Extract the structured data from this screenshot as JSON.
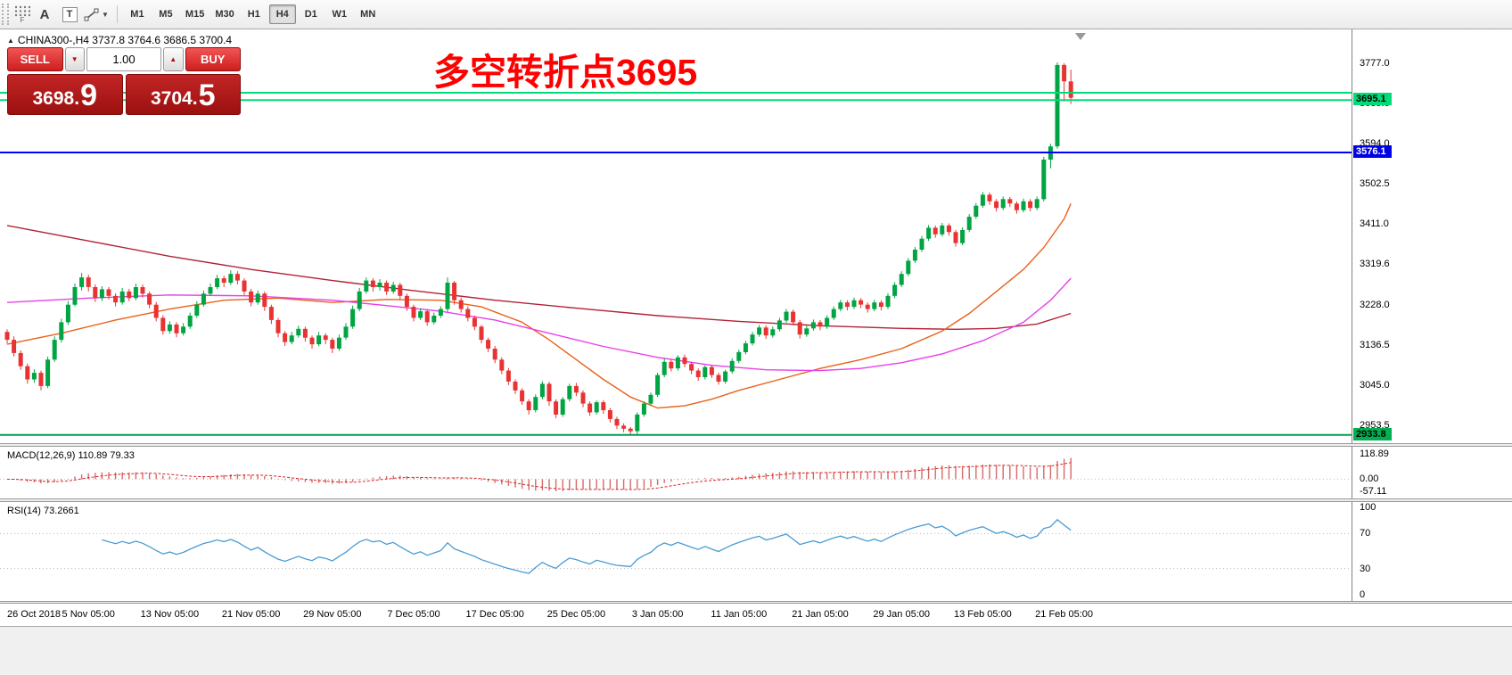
{
  "toolbar": {
    "grip_label": "F",
    "text_tool_a": "A",
    "text_tool_t": "T",
    "timeframes": [
      "M1",
      "M5",
      "M15",
      "M30",
      "H1",
      "H4",
      "D1",
      "W1",
      "MN"
    ],
    "active_timeframe": "H4"
  },
  "chart": {
    "symbol_line": "CHINA300-,H4  3737.8 3764.6 3686.5 3700.4",
    "annotation": "多空转折点3695",
    "annotation_color": "#FF0000",
    "axis_labels": [
      "3777.0",
      "3685.6",
      "3594.0",
      "3502.5",
      "3411.0",
      "3319.6",
      "3228.0",
      "3136.5",
      "3045.0",
      "2953.5"
    ]
  },
  "trade_panel": {
    "sell_label": "SELL",
    "buy_label": "BUY",
    "volume": "1.00",
    "sell_price_main": "3698.",
    "sell_price_pip": "9",
    "buy_price_main": "3704.",
    "buy_price_pip": "5"
  },
  "macd": {
    "label": "MACD(12,26,9) 110.89 79.33",
    "axis": [
      "118.89",
      "0.00",
      "-57.11"
    ],
    "range": [
      -57.11,
      118.89
    ],
    "hist_color": "#d46a6a",
    "signal_color": "#dd2222"
  },
  "rsi": {
    "label": "RSI(14) 73.2661",
    "axis": [
      "100",
      "70",
      "30",
      "0"
    ],
    "levels": [
      70,
      30
    ],
    "line_color": "#4a9bd4"
  },
  "timeline": [
    {
      "bar": 0,
      "label": "26 Oct 2018"
    },
    {
      "bar": 12,
      "label": "5 Nov 05:00"
    },
    {
      "bar": 24,
      "label": "13 Nov 05:00"
    },
    {
      "bar": 36,
      "label": "21 Nov 05:00"
    },
    {
      "bar": 48,
      "label": "29 Nov 05:00"
    },
    {
      "bar": 60,
      "label": "7 Dec 05:00"
    },
    {
      "bar": 72,
      "label": "17 Dec 05:00"
    },
    {
      "bar": 84,
      "label": "25 Dec 05:00"
    },
    {
      "bar": 96,
      "label": "3 Jan 05:00"
    },
    {
      "bar": 108,
      "label": "11 Jan 05:00"
    },
    {
      "bar": 120,
      "label": "21 Jan 05:00"
    },
    {
      "bar": 132,
      "label": "29 Jan 05:00"
    },
    {
      "bar": 144,
      "label": "13 Feb 05:00"
    },
    {
      "bar": 156,
      "label": "21 Feb 05:00"
    }
  ],
  "chart_data": {
    "type": "candlestick",
    "symbol": "CHINA300-",
    "timeframe": "H4",
    "current_bar": {
      "open": 3737.8,
      "high": 3764.6,
      "low": 3686.5,
      "close": 3700.4
    },
    "ylim": [
      2915,
      3856
    ],
    "up_color": "#00a443",
    "down_color": "#e93232",
    "hlines": [
      {
        "price": 3712.0,
        "color": "#00dc78",
        "width": 2
      },
      {
        "price": 3695.1,
        "color": "#00dc78",
        "width": 2,
        "tag": "3695.1",
        "tag_bg": "#00dc78",
        "tag_fg": "#000000"
      },
      {
        "price": 3576.1,
        "color": "#0000ff",
        "width": 2,
        "tag": "3576.1",
        "tag_bg": "#0000e8",
        "tag_fg": "#ffffff"
      },
      {
        "price": 2933.8,
        "color": "#00a050",
        "width": 2,
        "tag": "2933.8",
        "tag_bg": "#00b050",
        "tag_fg": "#000000"
      }
    ],
    "ma_lines": [
      {
        "name": "slow-ma",
        "color": "#b22235",
        "points": [
          [
            0,
            3410
          ],
          [
            12,
            3375
          ],
          [
            24,
            3340
          ],
          [
            36,
            3310
          ],
          [
            48,
            3285
          ],
          [
            60,
            3262
          ],
          [
            72,
            3240
          ],
          [
            84,
            3222
          ],
          [
            96,
            3205
          ],
          [
            108,
            3192
          ],
          [
            120,
            3182
          ],
          [
            132,
            3176
          ],
          [
            140,
            3174
          ],
          [
            146,
            3176
          ],
          [
            152,
            3186
          ],
          [
            157,
            3210
          ]
        ]
      },
      {
        "name": "medium-ma",
        "color": "#e8611a",
        "points": [
          [
            0,
            3140
          ],
          [
            8,
            3165
          ],
          [
            16,
            3195
          ],
          [
            24,
            3220
          ],
          [
            32,
            3240
          ],
          [
            40,
            3245
          ],
          [
            48,
            3235
          ],
          [
            56,
            3242
          ],
          [
            64,
            3240
          ],
          [
            70,
            3225
          ],
          [
            76,
            3190
          ],
          [
            80,
            3150
          ],
          [
            84,
            3105
          ],
          [
            88,
            3060
          ],
          [
            92,
            3020
          ],
          [
            96,
            2995
          ],
          [
            100,
            3000
          ],
          [
            104,
            3015
          ],
          [
            108,
            3035
          ],
          [
            114,
            3060
          ],
          [
            120,
            3085
          ],
          [
            126,
            3105
          ],
          [
            132,
            3130
          ],
          [
            138,
            3170
          ],
          [
            142,
            3210
          ],
          [
            146,
            3260
          ],
          [
            150,
            3310
          ],
          [
            153,
            3360
          ],
          [
            156,
            3425
          ],
          [
            157,
            3460
          ]
        ]
      },
      {
        "name": "long-ma",
        "color": "#e93fe9",
        "points": [
          [
            0,
            3235
          ],
          [
            12,
            3245
          ],
          [
            24,
            3252
          ],
          [
            36,
            3250
          ],
          [
            48,
            3240
          ],
          [
            56,
            3228
          ],
          [
            64,
            3215
          ],
          [
            72,
            3195
          ],
          [
            80,
            3165
          ],
          [
            88,
            3135
          ],
          [
            96,
            3110
          ],
          [
            104,
            3092
          ],
          [
            112,
            3082
          ],
          [
            120,
            3080
          ],
          [
            126,
            3085
          ],
          [
            132,
            3098
          ],
          [
            138,
            3118
          ],
          [
            144,
            3148
          ],
          [
            150,
            3190
          ],
          [
            154,
            3240
          ],
          [
            157,
            3290
          ]
        ]
      }
    ],
    "candles": [
      [
        3168,
        3174,
        3142,
        3150
      ],
      [
        3150,
        3158,
        3112,
        3120
      ],
      [
        3120,
        3126,
        3082,
        3090
      ],
      [
        3090,
        3096,
        3050,
        3060
      ],
      [
        3060,
        3083,
        3052,
        3075
      ],
      [
        3075,
        3080,
        3035,
        3045
      ],
      [
        3045,
        3112,
        3040,
        3105
      ],
      [
        3105,
        3158,
        3100,
        3150
      ],
      [
        3150,
        3198,
        3144,
        3190
      ],
      [
        3190,
        3238,
        3184,
        3230
      ],
      [
        3230,
        3278,
        3226,
        3270
      ],
      [
        3270,
        3302,
        3262,
        3292
      ],
      [
        3292,
        3298,
        3260,
        3270
      ],
      [
        3270,
        3276,
        3236,
        3245
      ],
      [
        3245,
        3272,
        3238,
        3265
      ],
      [
        3265,
        3270,
        3242,
        3250
      ],
      [
        3250,
        3256,
        3226,
        3235
      ],
      [
        3235,
        3268,
        3230,
        3260
      ],
      [
        3260,
        3266,
        3238,
        3245
      ],
      [
        3245,
        3278,
        3240,
        3270
      ],
      [
        3270,
        3276,
        3246,
        3255
      ],
      [
        3255,
        3260,
        3222,
        3230
      ],
      [
        3230,
        3236,
        3192,
        3200
      ],
      [
        3200,
        3206,
        3162,
        3170
      ],
      [
        3170,
        3192,
        3164,
        3185
      ],
      [
        3185,
        3190,
        3156,
        3165
      ],
      [
        3165,
        3188,
        3160,
        3180
      ],
      [
        3180,
        3212,
        3175,
        3205
      ],
      [
        3205,
        3238,
        3200,
        3230
      ],
      [
        3230,
        3262,
        3225,
        3255
      ],
      [
        3255,
        3278,
        3250,
        3270
      ],
      [
        3270,
        3298,
        3265,
        3290
      ],
      [
        3290,
        3296,
        3270,
        3280
      ],
      [
        3280,
        3308,
        3275,
        3300
      ],
      [
        3300,
        3306,
        3276,
        3285
      ],
      [
        3285,
        3290,
        3252,
        3260
      ],
      [
        3260,
        3266,
        3226,
        3235
      ],
      [
        3235,
        3262,
        3230,
        3255
      ],
      [
        3255,
        3260,
        3216,
        3225
      ],
      [
        3225,
        3230,
        3186,
        3195
      ],
      [
        3195,
        3200,
        3156,
        3165
      ],
      [
        3165,
        3170,
        3136,
        3145
      ],
      [
        3145,
        3168,
        3140,
        3160
      ],
      [
        3160,
        3182,
        3155,
        3175
      ],
      [
        3175,
        3180,
        3146,
        3155
      ],
      [
        3155,
        3160,
        3130,
        3140
      ],
      [
        3140,
        3168,
        3135,
        3160
      ],
      [
        3160,
        3165,
        3140,
        3150
      ],
      [
        3150,
        3155,
        3120,
        3130
      ],
      [
        3130,
        3162,
        3125,
        3155
      ],
      [
        3155,
        3188,
        3150,
        3180
      ],
      [
        3180,
        3228,
        3175,
        3220
      ],
      [
        3220,
        3268,
        3215,
        3260
      ],
      [
        3260,
        3292,
        3255,
        3285
      ],
      [
        3285,
        3290,
        3260,
        3270
      ],
      [
        3270,
        3288,
        3262,
        3280
      ],
      [
        3280,
        3285,
        3252,
        3260
      ],
      [
        3260,
        3282,
        3255,
        3275
      ],
      [
        3275,
        3280,
        3242,
        3250
      ],
      [
        3250,
        3255,
        3216,
        3225
      ],
      [
        3225,
        3230,
        3192,
        3200
      ],
      [
        3200,
        3222,
        3195,
        3215
      ],
      [
        3215,
        3220,
        3182,
        3190
      ],
      [
        3190,
        3212,
        3185,
        3205
      ],
      [
        3205,
        3226,
        3200,
        3220
      ],
      [
        3220,
        3292,
        3214,
        3280
      ],
      [
        3280,
        3284,
        3230,
        3240
      ],
      [
        3240,
        3246,
        3212,
        3220
      ],
      [
        3220,
        3226,
        3192,
        3200
      ],
      [
        3200,
        3205,
        3172,
        3180
      ],
      [
        3180,
        3184,
        3142,
        3150
      ],
      [
        3150,
        3155,
        3122,
        3130
      ],
      [
        3130,
        3136,
        3097,
        3105
      ],
      [
        3105,
        3110,
        3072,
        3080
      ],
      [
        3080,
        3086,
        3047,
        3055
      ],
      [
        3055,
        3060,
        3027,
        3035
      ],
      [
        3035,
        3040,
        3002,
        3010
      ],
      [
        3010,
        3015,
        2980,
        2990
      ],
      [
        2990,
        3026,
        2985,
        3020
      ],
      [
        3020,
        3056,
        3015,
        3050
      ],
      [
        3050,
        3055,
        3000,
        3010
      ],
      [
        3010,
        3015,
        2972,
        2980
      ],
      [
        2980,
        3020,
        2975,
        3015
      ],
      [
        3015,
        3050,
        3010,
        3045
      ],
      [
        3045,
        3052,
        3022,
        3030
      ],
      [
        3030,
        3035,
        2997,
        3005
      ],
      [
        3005,
        3010,
        2977,
        2985
      ],
      [
        2985,
        3012,
        2980,
        3008
      ],
      [
        3008,
        3013,
        2982,
        2990
      ],
      [
        2990,
        2995,
        2962,
        2970
      ],
      [
        2970,
        2975,
        2947,
        2955
      ],
      [
        2955,
        2960,
        2940,
        2948
      ],
      [
        2948,
        2952,
        2934,
        2942
      ],
      [
        2942,
        2985,
        2934,
        2980
      ],
      [
        2980,
        3010,
        2975,
        3005
      ],
      [
        3005,
        3030,
        3000,
        3025
      ],
      [
        3025,
        3075,
        3020,
        3070
      ],
      [
        3070,
        3108,
        3065,
        3100
      ],
      [
        3100,
        3105,
        3078,
        3085
      ],
      [
        3085,
        3115,
        3080,
        3110
      ],
      [
        3110,
        3116,
        3088,
        3095
      ],
      [
        3095,
        3100,
        3072,
        3080
      ],
      [
        3080,
        3085,
        3057,
        3065
      ],
      [
        3065,
        3092,
        3060,
        3088
      ],
      [
        3088,
        3093,
        3063,
        3070
      ],
      [
        3070,
        3075,
        3048,
        3055
      ],
      [
        3055,
        3082,
        3050,
        3078
      ],
      [
        3078,
        3108,
        3073,
        3102
      ],
      [
        3102,
        3128,
        3097,
        3122
      ],
      [
        3122,
        3148,
        3117,
        3142
      ],
      [
        3142,
        3168,
        3137,
        3162
      ],
      [
        3162,
        3184,
        3157,
        3178
      ],
      [
        3178,
        3183,
        3152,
        3160
      ],
      [
        3160,
        3180,
        3155,
        3174
      ],
      [
        3174,
        3200,
        3169,
        3194
      ],
      [
        3194,
        3220,
        3189,
        3214
      ],
      [
        3214,
        3219,
        3183,
        3190
      ],
      [
        3190,
        3195,
        3153,
        3162
      ],
      [
        3162,
        3182,
        3157,
        3176
      ],
      [
        3176,
        3196,
        3171,
        3190
      ],
      [
        3190,
        3195,
        3172,
        3180
      ],
      [
        3180,
        3206,
        3175,
        3200
      ],
      [
        3200,
        3226,
        3195,
        3220
      ],
      [
        3220,
        3241,
        3215,
        3235
      ],
      [
        3235,
        3240,
        3217,
        3225
      ],
      [
        3225,
        3246,
        3220,
        3240
      ],
      [
        3240,
        3245,
        3222,
        3230
      ],
      [
        3230,
        3235,
        3212,
        3220
      ],
      [
        3220,
        3241,
        3215,
        3235
      ],
      [
        3235,
        3240,
        3217,
        3225
      ],
      [
        3225,
        3256,
        3220,
        3250
      ],
      [
        3250,
        3281,
        3245,
        3275
      ],
      [
        3275,
        3306,
        3270,
        3300
      ],
      [
        3300,
        3336,
        3295,
        3330
      ],
      [
        3330,
        3361,
        3325,
        3355
      ],
      [
        3355,
        3386,
        3350,
        3380
      ],
      [
        3380,
        3411,
        3375,
        3405
      ],
      [
        3405,
        3410,
        3382,
        3390
      ],
      [
        3390,
        3416,
        3385,
        3410
      ],
      [
        3410,
        3415,
        3387,
        3395
      ],
      [
        3395,
        3400,
        3362,
        3370
      ],
      [
        3370,
        3406,
        3365,
        3400
      ],
      [
        3400,
        3436,
        3395,
        3430
      ],
      [
        3430,
        3461,
        3425,
        3455
      ],
      [
        3455,
        3486,
        3450,
        3480
      ],
      [
        3480,
        3485,
        3457,
        3465
      ],
      [
        3465,
        3470,
        3442,
        3450
      ],
      [
        3450,
        3476,
        3445,
        3470
      ],
      [
        3470,
        3475,
        3452,
        3460
      ],
      [
        3460,
        3465,
        3437,
        3445
      ],
      [
        3445,
        3471,
        3440,
        3465
      ],
      [
        3465,
        3470,
        3442,
        3450
      ],
      [
        3450,
        3476,
        3445,
        3470
      ],
      [
        3470,
        3566,
        3465,
        3560
      ],
      [
        3560,
        3596,
        3540,
        3590
      ],
      [
        3590,
        3781,
        3585,
        3775
      ],
      [
        3775,
        3779,
        3692,
        3737.8
      ],
      [
        3737.8,
        3764.6,
        3686.5,
        3700.4
      ]
    ]
  }
}
